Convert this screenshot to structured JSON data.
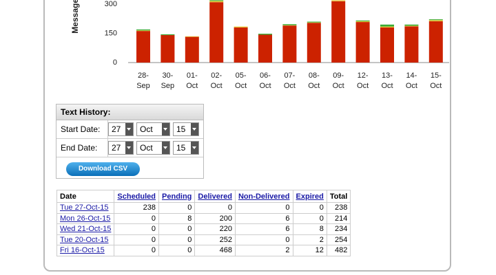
{
  "chart_data": {
    "type": "bar",
    "stacked": true,
    "y_label": "Messages",
    "categories": [
      "28-Sep",
      "30-Sep",
      "01-Oct",
      "02-Oct",
      "05-Oct",
      "06-Oct",
      "07-Oct",
      "08-Oct",
      "09-Oct",
      "12-Oct",
      "13-Oct",
      "14-Oct",
      "15-Oct"
    ],
    "series": [
      {
        "color": "#cc2200",
        "values": [
          162,
          141,
          132,
          310,
          180,
          143,
          190,
          204,
          315,
          208,
          180,
          186,
          212
        ]
      },
      {
        "color": "#e8c840",
        "values": [
          3,
          0,
          3,
          6,
          5,
          0,
          2,
          2,
          5,
          4,
          5,
          3,
          6
        ]
      },
      {
        "color": "#3aaa35",
        "values": [
          5,
          4,
          0,
          4,
          0,
          5,
          5,
          4,
          0,
          4,
          10,
          6,
          4
        ]
      }
    ],
    "ylim": [
      0,
      300
    ],
    "yticks": [
      0,
      150,
      300
    ]
  },
  "form": {
    "title": "Text History:",
    "start_label": "Start Date:",
    "end_label": "End Date:",
    "start_date": [
      "27",
      "Oct",
      "15"
    ],
    "end_date": [
      "27",
      "Oct",
      "15"
    ],
    "button": "Download CSV"
  },
  "table": {
    "columns": [
      "Date",
      "Scheduled",
      "Pending",
      "Delivered",
      "Non-Delivered",
      "Expired",
      "Total"
    ],
    "rows": [
      [
        "Tue 27-Oct-15",
        238,
        0,
        0,
        0,
        0,
        238
      ],
      [
        "Mon 26-Oct-15",
        0,
        8,
        200,
        6,
        0,
        214
      ],
      [
        "Wed 21-Oct-15",
        0,
        0,
        220,
        6,
        8,
        234
      ],
      [
        "Tue 20-Oct-15",
        0,
        0,
        252,
        0,
        2,
        254
      ],
      [
        "Fri 16-Oct-15",
        0,
        0,
        468,
        2,
        12,
        482
      ]
    ]
  }
}
